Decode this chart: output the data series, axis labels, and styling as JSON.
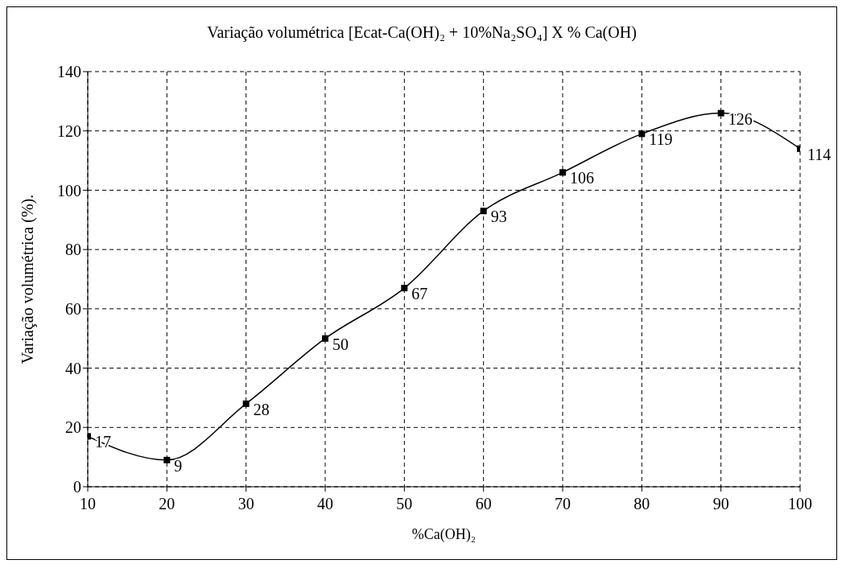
{
  "chart_data": {
    "type": "line",
    "title": "Variação volumétrica [Ecat-Ca(OH)₂ + 10%Na₂SO₄] X % Ca(OH)",
    "xlabel": "%Ca(OH)₂",
    "ylabel": "Variação volumétrica (%).",
    "x": [
      10,
      20,
      30,
      40,
      50,
      60,
      70,
      80,
      90,
      100
    ],
    "series": [
      {
        "color": "#000000",
        "values": [
          17,
          9,
          28,
          50,
          67,
          93,
          106,
          119,
          126,
          114
        ]
      }
    ],
    "xlim": [
      10,
      100
    ],
    "xticks": [
      10,
      20,
      30,
      40,
      50,
      60,
      70,
      80,
      90,
      100
    ],
    "ylim": [
      0,
      140
    ],
    "yticks": [
      0,
      20,
      40,
      60,
      80,
      100,
      120,
      140
    ],
    "grid": true,
    "legend": false,
    "marker": "square",
    "line_style": "solid",
    "data_labels": true
  }
}
